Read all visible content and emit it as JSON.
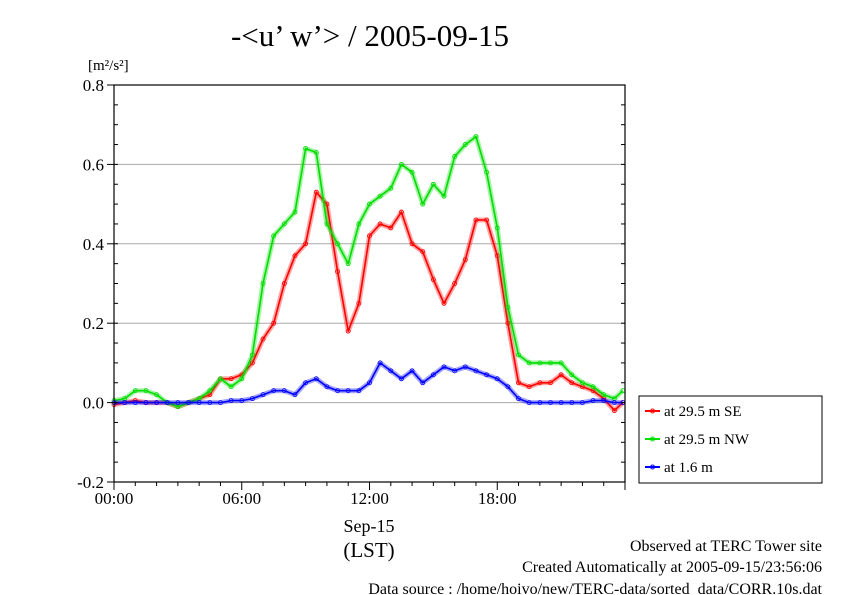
{
  "chart_data": {
    "type": "line",
    "title": "-<u’ w’> / 2005-09-15",
    "ylabel_unit": "[m²/s²]",
    "xlabel_date": "Sep-15",
    "xlabel_zone": "(LST)",
    "ylim": [
      -0.2,
      0.8
    ],
    "xlim": [
      0,
      24
    ],
    "yticks": [
      -0.2,
      0.0,
      0.2,
      0.4,
      0.6,
      0.8
    ],
    "ytick_labels": [
      "-0.2",
      "0.0",
      "0.2",
      "0.4",
      "0.6",
      "0.8"
    ],
    "xticks": [
      0,
      6,
      12,
      18
    ],
    "xtick_labels": [
      "00:00",
      "06:00",
      "12:00",
      "18:00"
    ],
    "grid": true,
    "legend_position": "right",
    "series": [
      {
        "name": "at 29.5 m SE",
        "color": "#ff0000",
        "x": [
          0,
          0.5,
          1,
          1.5,
          2,
          2.5,
          3,
          3.5,
          4,
          4.5,
          5,
          5.5,
          6,
          6.5,
          7,
          7.5,
          8,
          8.5,
          9,
          9.5,
          10,
          10.5,
          11,
          11.5,
          12,
          12.5,
          13,
          13.5,
          14,
          14.5,
          15,
          15.5,
          16,
          16.5,
          17,
          17.5,
          18,
          18.5,
          19,
          19.5,
          20,
          20.5,
          21,
          21.5,
          22,
          22.5,
          23,
          23.5,
          23.9
        ],
        "y": [
          -0.005,
          0.0,
          0.005,
          0.0,
          0.0,
          0.0,
          -0.01,
          0.0,
          0.01,
          0.02,
          0.06,
          0.06,
          0.07,
          0.1,
          0.16,
          0.2,
          0.3,
          0.37,
          0.4,
          0.53,
          0.5,
          0.33,
          0.18,
          0.25,
          0.42,
          0.45,
          0.44,
          0.48,
          0.4,
          0.38,
          0.31,
          0.25,
          0.3,
          0.36,
          0.46,
          0.46,
          0.37,
          0.2,
          0.05,
          0.04,
          0.05,
          0.05,
          0.07,
          0.05,
          0.04,
          0.03,
          0.01,
          -0.02,
          0.0
        ]
      },
      {
        "name": "at 29.5 m NW",
        "color": "#00dd00",
        "x": [
          0,
          0.5,
          1,
          1.5,
          2,
          2.5,
          3,
          3.5,
          4,
          4.5,
          5,
          5.5,
          6,
          6.5,
          7,
          7.5,
          8,
          8.5,
          9,
          9.5,
          10,
          10.5,
          11,
          11.5,
          12,
          12.5,
          13,
          13.5,
          14,
          14.5,
          15,
          15.5,
          16,
          16.5,
          17,
          17.5,
          18,
          18.5,
          19,
          19.5,
          20,
          20.5,
          21,
          21.5,
          22,
          22.5,
          23,
          23.5,
          23.9
        ],
        "y": [
          0.005,
          0.01,
          0.03,
          0.03,
          0.02,
          0.0,
          -0.01,
          0.0,
          0.01,
          0.03,
          0.06,
          0.04,
          0.06,
          0.12,
          0.3,
          0.42,
          0.45,
          0.48,
          0.64,
          0.63,
          0.45,
          0.4,
          0.35,
          0.45,
          0.5,
          0.52,
          0.54,
          0.6,
          0.58,
          0.5,
          0.55,
          0.52,
          0.62,
          0.65,
          0.67,
          0.58,
          0.44,
          0.24,
          0.12,
          0.1,
          0.1,
          0.1,
          0.1,
          0.07,
          0.05,
          0.04,
          0.02,
          0.01,
          0.03
        ]
      },
      {
        "name": "at 1.6 m",
        "color": "#0000ff",
        "x": [
          0,
          0.5,
          1,
          1.5,
          2,
          2.5,
          3,
          3.5,
          4,
          4.5,
          5,
          5.5,
          6,
          6.5,
          7,
          7.5,
          8,
          8.5,
          9,
          9.5,
          10,
          10.5,
          11,
          11.5,
          12,
          12.5,
          13,
          13.5,
          14,
          14.5,
          15,
          15.5,
          16,
          16.5,
          17,
          17.5,
          18,
          18.5,
          19,
          19.5,
          20,
          20.5,
          21,
          21.5,
          22,
          22.5,
          23,
          23.5,
          23.9
        ],
        "y": [
          0.0,
          0.0,
          0.0,
          0.0,
          0.0,
          0.0,
          0.0,
          0.0,
          0.0,
          0.0,
          0.0,
          0.005,
          0.005,
          0.01,
          0.02,
          0.03,
          0.03,
          0.02,
          0.05,
          0.06,
          0.04,
          0.03,
          0.03,
          0.03,
          0.05,
          0.1,
          0.08,
          0.06,
          0.08,
          0.05,
          0.07,
          0.09,
          0.08,
          0.09,
          0.08,
          0.07,
          0.06,
          0.04,
          0.01,
          0.0,
          0.0,
          0.0,
          0.0,
          0.0,
          0.0,
          0.005,
          0.005,
          0.0,
          0.0
        ]
      }
    ]
  },
  "footer": {
    "line1": "Observed at TERC Tower site",
    "line2": "Created Automatically at 2005-09-15/23:56:06",
    "line3": "Data source : /home/hoivo/new/TERC-data/sorted_data/CORR.10s.dat"
  }
}
